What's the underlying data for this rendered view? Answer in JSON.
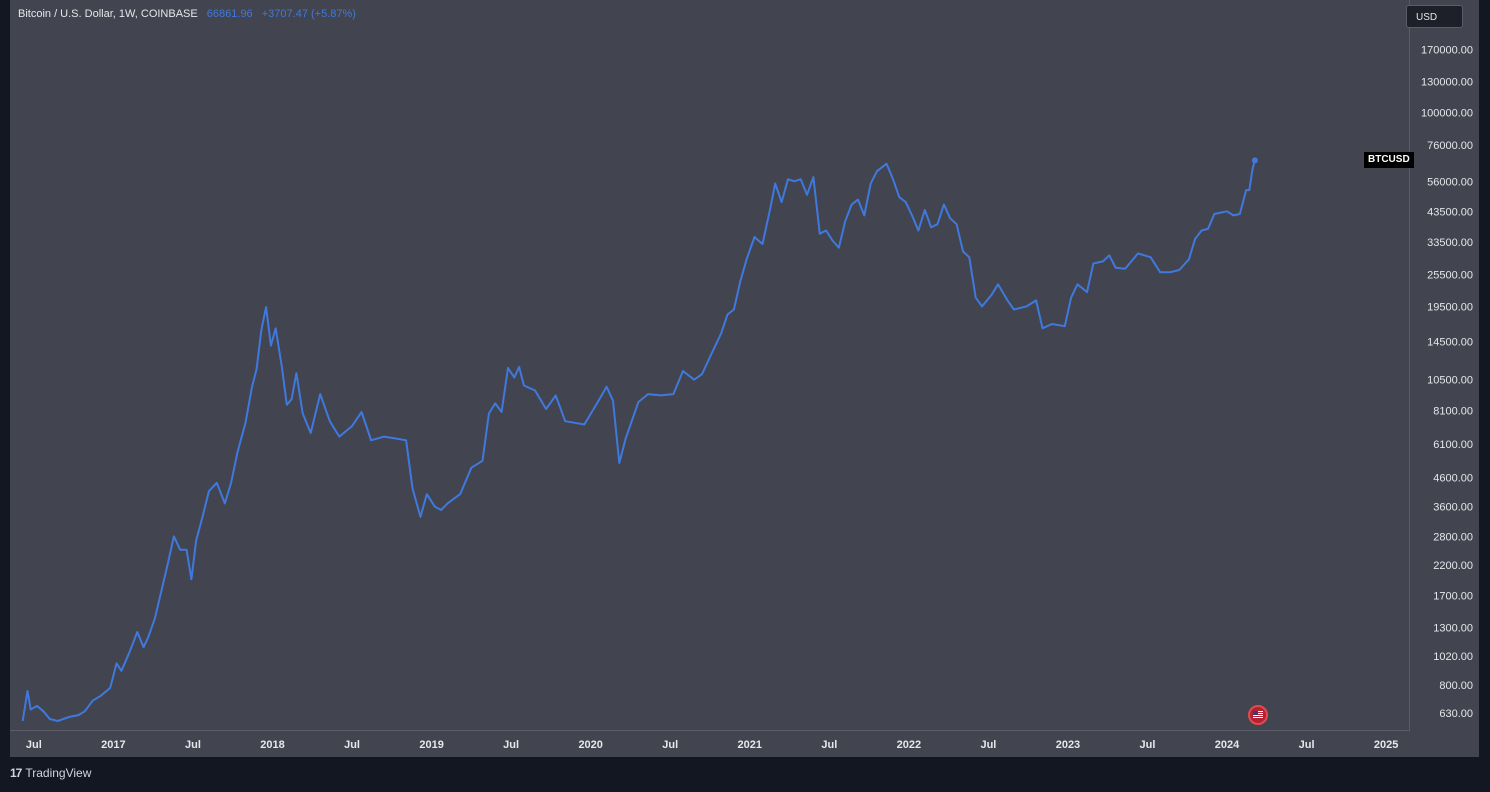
{
  "legend": {
    "symbol": "Bitcoin / U.S. Dollar, 1W, COINBASE",
    "price": "66861.96",
    "change": "+3707.47 (+5.87%)"
  },
  "currency_button": "USD",
  "series_tag": "BTCUSD",
  "brand": {
    "logo": "17",
    "name": "TradingView"
  },
  "colors": {
    "line": "#3f79de",
    "background": "#42444f",
    "frame": "#131722",
    "text": "#e6e7ea"
  },
  "chart_data": {
    "type": "line",
    "title": "",
    "y_scale": "log",
    "x_range": [
      2016.35,
      2025.15
    ],
    "y_range_visible": [
      585,
      250000
    ],
    "price_ticks": [
      170000,
      130000,
      100000,
      76000,
      56000,
      43500,
      33500,
      25500,
      19500,
      14500,
      10500,
      8100,
      6100,
      4600,
      3600,
      2800,
      2200,
      1700,
      1300,
      1020,
      800,
      630
    ],
    "price_tick_labels": [
      "170000.00",
      "130000.00",
      "100000.00",
      "76000.00",
      "56000.00",
      "43500.00",
      "33500.00",
      "25500.00",
      "19500.00",
      "14500.00",
      "10500.00",
      "8100.00",
      "6100.00",
      "4600.00",
      "3600.00",
      "2800.00",
      "2200.00",
      "1700.00",
      "1300.00",
      "1020.00",
      "800.00",
      "630.00"
    ],
    "time_ticks": [
      {
        "label": "Jul",
        "t": 2016.5
      },
      {
        "label": "2017",
        "t": 2017.0
      },
      {
        "label": "Jul",
        "t": 2017.5
      },
      {
        "label": "2018",
        "t": 2018.0
      },
      {
        "label": "Jul",
        "t": 2018.5
      },
      {
        "label": "2019",
        "t": 2019.0
      },
      {
        "label": "Jul",
        "t": 2019.5
      },
      {
        "label": "2020",
        "t": 2020.0
      },
      {
        "label": "Jul",
        "t": 2020.5
      },
      {
        "label": "2021",
        "t": 2021.0
      },
      {
        "label": "Jul",
        "t": 2021.5
      },
      {
        "label": "2022",
        "t": 2022.0
      },
      {
        "label": "Jul",
        "t": 2022.5
      },
      {
        "label": "2023",
        "t": 2023.0
      },
      {
        "label": "Jul",
        "t": 2023.5
      },
      {
        "label": "2024",
        "t": 2024.0
      },
      {
        "label": "Jul",
        "t": 2024.5
      },
      {
        "label": "2025",
        "t": 2025.0
      }
    ],
    "series": [
      {
        "points": [
          [
            2016.43,
            590
          ],
          [
            2016.46,
            760
          ],
          [
            2016.48,
            650
          ],
          [
            2016.52,
            670
          ],
          [
            2016.56,
            640
          ],
          [
            2016.6,
            600
          ],
          [
            2016.65,
            590
          ],
          [
            2016.72,
            610
          ],
          [
            2016.78,
            620
          ],
          [
            2016.82,
            640
          ],
          [
            2016.87,
            700
          ],
          [
            2016.92,
            730
          ],
          [
            2016.98,
            780
          ],
          [
            2017.02,
            960
          ],
          [
            2017.05,
            900
          ],
          [
            2017.1,
            1050
          ],
          [
            2017.15,
            1250
          ],
          [
            2017.19,
            1100
          ],
          [
            2017.22,
            1200
          ],
          [
            2017.26,
            1400
          ],
          [
            2017.3,
            1750
          ],
          [
            2017.34,
            2200
          ],
          [
            2017.38,
            2800
          ],
          [
            2017.42,
            2500
          ],
          [
            2017.46,
            2500
          ],
          [
            2017.49,
            1950
          ],
          [
            2017.52,
            2700
          ],
          [
            2017.56,
            3300
          ],
          [
            2017.6,
            4100
          ],
          [
            2017.65,
            4400
          ],
          [
            2017.7,
            3700
          ],
          [
            2017.74,
            4400
          ],
          [
            2017.78,
            5700
          ],
          [
            2017.83,
            7300
          ],
          [
            2017.87,
            9800
          ],
          [
            2017.9,
            11500
          ],
          [
            2017.93,
            16000
          ],
          [
            2017.96,
            19400
          ],
          [
            2017.99,
            14000
          ],
          [
            2018.02,
            16200
          ],
          [
            2018.06,
            11600
          ],
          [
            2018.09,
            8500
          ],
          [
            2018.12,
            8900
          ],
          [
            2018.15,
            11100
          ],
          [
            2018.19,
            7900
          ],
          [
            2018.24,
            6700
          ],
          [
            2018.3,
            9300
          ],
          [
            2018.36,
            7400
          ],
          [
            2018.42,
            6500
          ],
          [
            2018.5,
            7100
          ],
          [
            2018.56,
            8000
          ],
          [
            2018.62,
            6300
          ],
          [
            2018.7,
            6500
          ],
          [
            2018.77,
            6400
          ],
          [
            2018.84,
            6300
          ],
          [
            2018.88,
            4200
          ],
          [
            2018.93,
            3300
          ],
          [
            2018.97,
            4000
          ],
          [
            2019.02,
            3600
          ],
          [
            2019.06,
            3500
          ],
          [
            2019.1,
            3700
          ],
          [
            2019.18,
            4000
          ],
          [
            2019.25,
            5000
          ],
          [
            2019.32,
            5300
          ],
          [
            2019.36,
            7900
          ],
          [
            2019.4,
            8600
          ],
          [
            2019.44,
            8000
          ],
          [
            2019.48,
            11600
          ],
          [
            2019.52,
            10700
          ],
          [
            2019.55,
            11700
          ],
          [
            2019.58,
            10000
          ],
          [
            2019.65,
            9600
          ],
          [
            2019.72,
            8200
          ],
          [
            2019.78,
            9200
          ],
          [
            2019.84,
            7400
          ],
          [
            2019.9,
            7300
          ],
          [
            2019.96,
            7200
          ],
          [
            2020.04,
            8600
          ],
          [
            2020.1,
            9900
          ],
          [
            2020.14,
            8800
          ],
          [
            2020.18,
            5200
          ],
          [
            2020.22,
            6400
          ],
          [
            2020.3,
            8700
          ],
          [
            2020.36,
            9300
          ],
          [
            2020.44,
            9200
          ],
          [
            2020.52,
            9300
          ],
          [
            2020.58,
            11300
          ],
          [
            2020.65,
            10500
          ],
          [
            2020.7,
            11000
          ],
          [
            2020.76,
            13100
          ],
          [
            2020.82,
            15500
          ],
          [
            2020.86,
            18200
          ],
          [
            2020.9,
            19000
          ],
          [
            2020.94,
            24000
          ],
          [
            2020.98,
            29000
          ],
          [
            2021.03,
            35000
          ],
          [
            2021.08,
            33000
          ],
          [
            2021.13,
            45000
          ],
          [
            2021.16,
            55000
          ],
          [
            2021.2,
            47000
          ],
          [
            2021.24,
            57000
          ],
          [
            2021.28,
            56000
          ],
          [
            2021.32,
            57000
          ],
          [
            2021.36,
            50000
          ],
          [
            2021.4,
            58000
          ],
          [
            2021.44,
            36000
          ],
          [
            2021.48,
            37000
          ],
          [
            2021.52,
            34000
          ],
          [
            2021.56,
            32000
          ],
          [
            2021.6,
            40000
          ],
          [
            2021.64,
            46000
          ],
          [
            2021.68,
            48000
          ],
          [
            2021.72,
            42000
          ],
          [
            2021.76,
            55000
          ],
          [
            2021.8,
            61000
          ],
          [
            2021.86,
            65000
          ],
          [
            2021.9,
            57000
          ],
          [
            2021.94,
            49000
          ],
          [
            2021.98,
            47000
          ],
          [
            2022.02,
            42000
          ],
          [
            2022.06,
            37000
          ],
          [
            2022.1,
            44000
          ],
          [
            2022.14,
            38000
          ],
          [
            2022.18,
            39000
          ],
          [
            2022.22,
            46000
          ],
          [
            2022.26,
            41000
          ],
          [
            2022.3,
            39000
          ],
          [
            2022.34,
            31000
          ],
          [
            2022.38,
            29500
          ],
          [
            2022.42,
            21000
          ],
          [
            2022.46,
            19500
          ],
          [
            2022.52,
            21500
          ],
          [
            2022.56,
            23500
          ],
          [
            2022.62,
            20500
          ],
          [
            2022.66,
            19000
          ],
          [
            2022.74,
            19500
          ],
          [
            2022.8,
            20500
          ],
          [
            2022.84,
            16200
          ],
          [
            2022.9,
            16800
          ],
          [
            2022.98,
            16500
          ],
          [
            2023.02,
            21000
          ],
          [
            2023.06,
            23500
          ],
          [
            2023.12,
            22000
          ],
          [
            2023.16,
            28000
          ],
          [
            2023.22,
            28500
          ],
          [
            2023.26,
            30000
          ],
          [
            2023.3,
            27000
          ],
          [
            2023.36,
            26800
          ],
          [
            2023.44,
            30500
          ],
          [
            2023.48,
            30000
          ],
          [
            2023.52,
            29500
          ],
          [
            2023.58,
            26000
          ],
          [
            2023.64,
            26000
          ],
          [
            2023.7,
            26500
          ],
          [
            2023.76,
            29000
          ],
          [
            2023.8,
            34500
          ],
          [
            2023.84,
            37000
          ],
          [
            2023.88,
            37500
          ],
          [
            2023.92,
            42500
          ],
          [
            2023.96,
            43000
          ],
          [
            2024.0,
            43500
          ],
          [
            2024.04,
            42000
          ],
          [
            2024.08,
            42500
          ],
          [
            2024.1,
            47000
          ],
          [
            2024.12,
            52000
          ],
          [
            2024.14,
            52000
          ],
          [
            2024.16,
            62000
          ],
          [
            2024.175,
            66862
          ]
        ]
      }
    ]
  }
}
